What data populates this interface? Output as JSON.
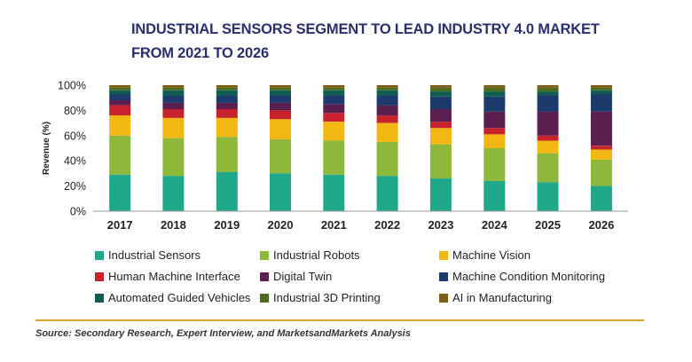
{
  "title": {
    "line1": "INDUSTRIAL SENSORS SEGMENT TO LEAD INDUSTRY 4.0 MARKET",
    "line2": "FROM 2021 TO 2026"
  },
  "source": "Source: Secondary Research, Expert Interview, and MarketsandMarkets Analysis",
  "chart_data": {
    "type": "bar",
    "stacked": true,
    "title": "INDUSTRIAL SENSORS SEGMENT TO LEAD INDUSTRY 4.0 MARKET FROM 2021 TO 2026",
    "xlabel": "",
    "ylabel": "Revenue (%)",
    "ylim": [
      0,
      100
    ],
    "yticks": [
      "0%",
      "20%",
      "40%",
      "60%",
      "80%",
      "100%"
    ],
    "categories": [
      "2017",
      "2018",
      "2019",
      "2020",
      "2021",
      "2022",
      "2023",
      "2024",
      "2025",
      "2026"
    ],
    "legend_position": "bottom",
    "series": [
      {
        "name": "Industrial Sensors",
        "color": "#1fa88a",
        "values": [
          29,
          28,
          31,
          30,
          29,
          28,
          26,
          24,
          23,
          20
        ]
      },
      {
        "name": "Industrial Robots",
        "color": "#8db83a",
        "values": [
          31,
          30,
          28,
          27,
          27,
          27,
          27,
          26,
          23,
          21
        ]
      },
      {
        "name": "Machine Vision",
        "color": "#f2b712",
        "values": [
          16,
          16,
          15,
          16,
          15,
          15,
          13,
          11,
          10,
          8
        ]
      },
      {
        "name": "Human Machine Interface",
        "color": "#c8232c",
        "values": [
          8,
          7,
          7,
          7,
          7,
          6,
          5,
          5,
          4,
          3
        ]
      },
      {
        "name": "Digital Twin",
        "color": "#5a1f4e",
        "values": [
          4,
          5,
          5,
          6,
          7,
          8,
          10,
          13,
          19,
          27
        ]
      },
      {
        "name": "Machine Condition Monitoring",
        "color": "#1c3a6b",
        "values": [
          5,
          6,
          6,
          6,
          7,
          8,
          10,
          12,
          13,
          14
        ]
      },
      {
        "name": "Automated Guided Vehicles",
        "color": "#0d5e4f",
        "values": [
          3,
          4,
          4,
          4,
          4,
          4,
          4,
          4,
          3,
          3
        ]
      },
      {
        "name": "Industrial 3D Printing",
        "color": "#4e6b1f",
        "values": [
          2,
          2,
          2,
          2,
          2,
          2,
          3,
          3,
          3,
          2
        ]
      },
      {
        "name": "AI in Manufacturing",
        "color": "#7a5c12",
        "values": [
          2,
          2,
          2,
          2,
          2,
          2,
          2,
          2,
          2,
          2
        ]
      }
    ]
  }
}
